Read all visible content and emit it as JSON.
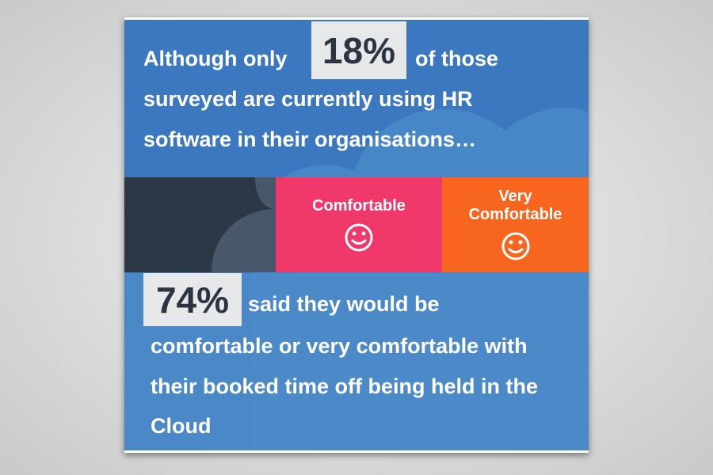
{
  "headline": {
    "prefix": "Although only",
    "highlight": "18%",
    "lines": [
      "of those",
      "surveyed are currently using HR",
      "software in their organisations…"
    ]
  },
  "segments": [
    {
      "label": "Comfortable"
    },
    {
      "label": "Very Comfortable"
    }
  ],
  "conclusion": {
    "highlight": "74%",
    "lines": [
      "said they would be",
      "comfortable or very comfortable with",
      "their booked time off being held in the",
      "Cloud"
    ]
  }
}
